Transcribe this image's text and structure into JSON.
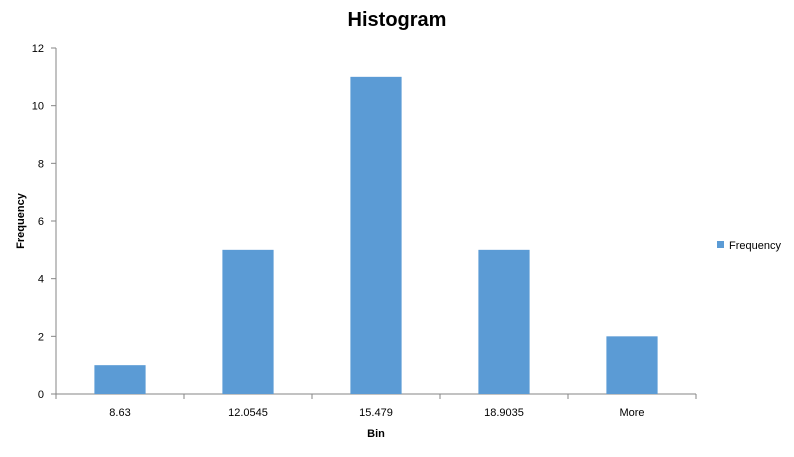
{
  "chart_data": {
    "type": "bar",
    "title": "Histogram",
    "xlabel": "Bin",
    "ylabel": "Frequency",
    "categories": [
      "8.63",
      "12.0545",
      "15.479",
      "18.9035",
      "More"
    ],
    "series": [
      {
        "name": "Frequency",
        "values": [
          1,
          5,
          11,
          5,
          2
        ],
        "color": "#5B9BD5"
      }
    ],
    "ylim": [
      0,
      12
    ],
    "yticks": [
      0,
      2,
      4,
      6,
      8,
      10,
      12
    ],
    "grid": false,
    "legend": "right"
  }
}
